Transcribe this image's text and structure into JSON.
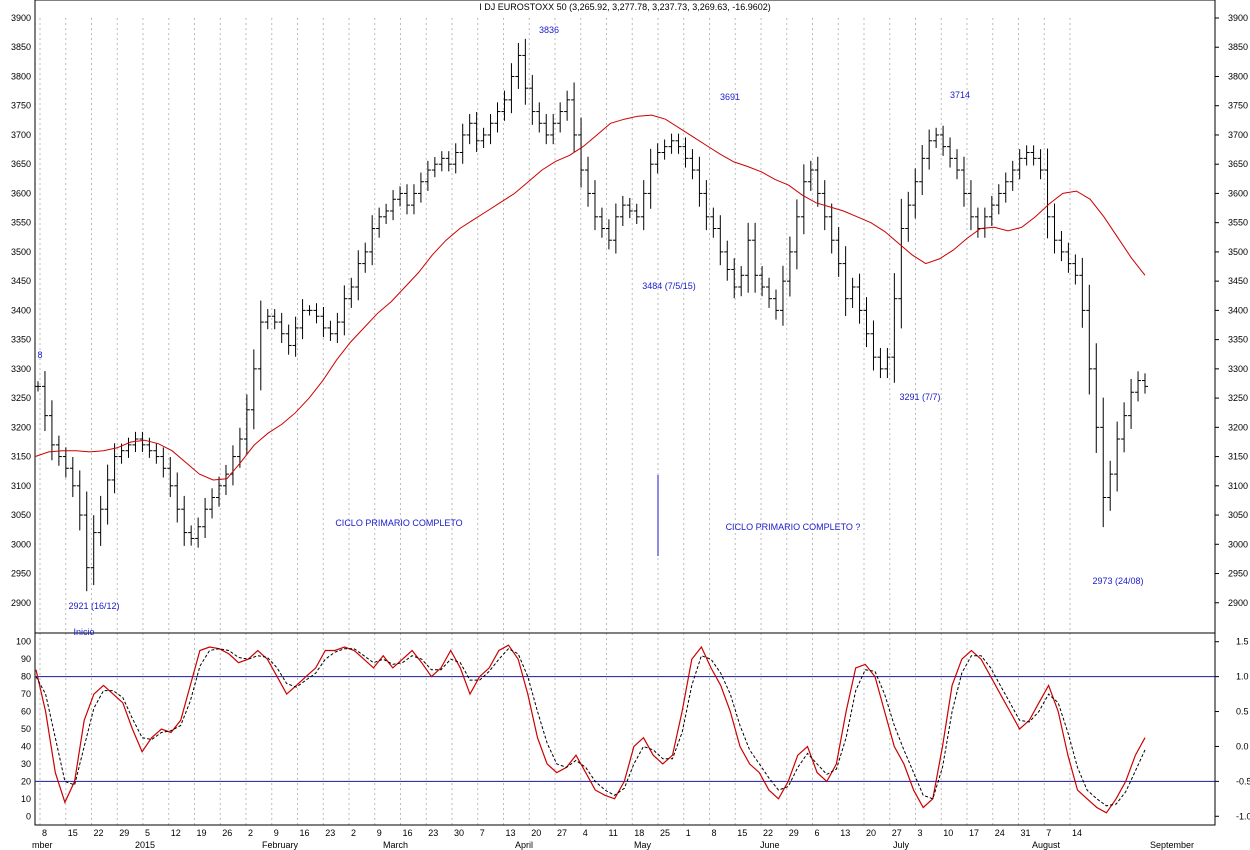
{
  "chart_data": {
    "type": "ohlc",
    "title": "I DJ EUROSTOXX 50 (3,265.92, 3,277.78, 3,237.73, 3,269.63, -16.9602)",
    "price_axis": {
      "ylim": [
        2850,
        3900
      ],
      "ticks": [
        "2900",
        "2950",
        "3000",
        "3050",
        "3100",
        "3150",
        "3200",
        "3250",
        "3300",
        "3350",
        "3400",
        "3450",
        "3500",
        "3550",
        "3600",
        "3650",
        "3700",
        "3750",
        "3800",
        "3850",
        "3900"
      ]
    },
    "oscillator_axis": {
      "ylim": [
        -5,
        105
      ],
      "left_ticks": [
        "0",
        "10",
        "20",
        "30",
        "40",
        "50",
        "60",
        "70",
        "80",
        "90",
        "100"
      ],
      "right_ticks": [
        "-1.0",
        "-0.5",
        "0.0",
        "0.5",
        "1.0",
        "1.5"
      ],
      "lines": [
        20,
        80
      ]
    },
    "x_day_labels": [
      "8",
      "15",
      "22",
      "29",
      "5",
      "12",
      "19",
      "26",
      "2",
      "9",
      "16",
      "23",
      "2",
      "9",
      "16",
      "23",
      "30",
      "7",
      "13",
      "20",
      "27",
      "4",
      "11",
      "18",
      "25",
      "1",
      "8",
      "15",
      "22",
      "29",
      "6",
      "13",
      "20",
      "27",
      "3",
      "10",
      "17",
      "24",
      "31",
      "7",
      "14"
    ],
    "x_month_labels": [
      "mber",
      "2015",
      "February",
      "March",
      "April",
      "May",
      "June",
      "July",
      "August",
      "September"
    ],
    "annotations": [
      {
        "text": "3836"
      },
      {
        "text": "3691"
      },
      {
        "text": "3714"
      },
      {
        "text": "3484 (7/5/15)"
      },
      {
        "text": "3291 (7/7)"
      },
      {
        "text": "2921 (16/12)"
      },
      {
        "text": "2973 (24/08)"
      },
      {
        "text": "CICLO PRIMARIO COMPLETO"
      },
      {
        "text": "CICLO PRIMARIO COMPLETO ?"
      },
      {
        "text": "Inicio"
      },
      {
        "text": "8"
      }
    ],
    "series": [
      {
        "kind": "price",
        "color": "#000000",
        "values": [
          3270,
          3220,
          3170,
          3150,
          3130,
          3100,
          3050,
          2960,
          3020,
          3060,
          3110,
          3150,
          3160,
          3170,
          3180,
          3170,
          3160,
          3150,
          3130,
          3100,
          3060,
          3020,
          3010,
          3030,
          3060,
          3080,
          3100,
          3120,
          3150,
          3180,
          3230,
          3300,
          3380,
          3390,
          3380,
          3360,
          3340,
          3370,
          3400,
          3400,
          3390,
          3370,
          3360,
          3380,
          3420,
          3440,
          3480,
          3500,
          3540,
          3560,
          3570,
          3590,
          3600,
          3580,
          3600,
          3620,
          3640,
          3650,
          3660,
          3650,
          3670,
          3700,
          3720,
          3690,
          3700,
          3720,
          3740,
          3760,
          3800,
          3836,
          3780,
          3740,
          3720,
          3700,
          3720,
          3740,
          3760,
          3700,
          3640,
          3600,
          3560,
          3540,
          3520,
          3560,
          3580,
          3570,
          3560,
          3600,
          3650,
          3670,
          3680,
          3690,
          3680,
          3660,
          3640,
          3600,
          3560,
          3540,
          3500,
          3470,
          3440,
          3460,
          3520,
          3460,
          3440,
          3420,
          3400,
          3450,
          3500,
          3560,
          3620,
          3640,
          3600,
          3560,
          3520,
          3480,
          3420,
          3440,
          3400,
          3360,
          3320,
          3300,
          3320,
          3420,
          3540,
          3580,
          3620,
          3660,
          3690,
          3700,
          3680,
          3660,
          3640,
          3600,
          3560,
          3540,
          3560,
          3580,
          3600,
          3620,
          3640,
          3660,
          3670,
          3660,
          3640,
          3560,
          3520,
          3500,
          3480,
          3460,
          3400,
          3300,
          3200,
          3080,
          3120,
          3180,
          3220,
          3260,
          3280,
          3270
        ]
      },
      {
        "kind": "moving_average",
        "color": "#cc0000",
        "values": [
          3150,
          3158,
          3160,
          3160,
          3158,
          3160,
          3165,
          3175,
          3178,
          3172,
          3160,
          3140,
          3120,
          3110,
          3112,
          3140,
          3170,
          3190,
          3205,
          3225,
          3250,
          3280,
          3315,
          3345,
          3370,
          3395,
          3415,
          3440,
          3465,
          3495,
          3520,
          3540,
          3555,
          3570,
          3585,
          3600,
          3620,
          3640,
          3655,
          3665,
          3680,
          3700,
          3720,
          3727,
          3732,
          3734,
          3727,
          3712,
          3697,
          3682,
          3667,
          3654,
          3646,
          3637,
          3624,
          3614,
          3597,
          3584,
          3577,
          3570,
          3560,
          3550,
          3535,
          3515,
          3495,
          3480,
          3488,
          3503,
          3523,
          3540,
          3542,
          3536,
          3542,
          3560,
          3582,
          3600,
          3604,
          3590,
          3560,
          3525,
          3490,
          3460
        ]
      },
      {
        "kind": "oscillator_k",
        "color": "#cc0000",
        "values": [
          84,
          60,
          25,
          8,
          20,
          55,
          70,
          75,
          70,
          65,
          50,
          37,
          45,
          50,
          48,
          55,
          75,
          95,
          97,
          96,
          93,
          88,
          90,
          95,
          90,
          80,
          70,
          75,
          80,
          85,
          95,
          95,
          97,
          95,
          90,
          85,
          92,
          85,
          90,
          95,
          88,
          80,
          85,
          95,
          85,
          70,
          80,
          85,
          95,
          98,
          90,
          70,
          45,
          30,
          25,
          28,
          35,
          25,
          15,
          12,
          10,
          20,
          40,
          45,
          35,
          30,
          35,
          60,
          90,
          97,
          85,
          75,
          60,
          40,
          30,
          25,
          15,
          10,
          20,
          35,
          40,
          25,
          20,
          30,
          60,
          85,
          87,
          80,
          60,
          40,
          30,
          15,
          5,
          10,
          40,
          75,
          90,
          95,
          90,
          80,
          70,
          60,
          50,
          55,
          65,
          75,
          60,
          35,
          15,
          10,
          5,
          2,
          10,
          20,
          35,
          45
        ]
      },
      {
        "kind": "oscillator_d",
        "color": "#000000",
        "values": [
          80,
          70,
          45,
          20,
          18,
          40,
          62,
          72,
          72,
          68,
          56,
          45,
          44,
          48,
          49,
          52,
          66,
          86,
          95,
          96,
          95,
          91,
          90,
          92,
          91,
          85,
          76,
          74,
          78,
          82,
          90,
          94,
          96,
          96,
          92,
          88,
          90,
          87,
          88,
          92,
          90,
          84,
          84,
          90,
          88,
          78,
          78,
          83,
          90,
          96,
          93,
          80,
          60,
          42,
          30,
          28,
          32,
          28,
          20,
          15,
          12,
          16,
          30,
          40,
          38,
          33,
          33,
          48,
          75,
          92,
          90,
          82,
          70,
          52,
          38,
          30,
          22,
          15,
          17,
          28,
          36,
          30,
          24,
          27,
          45,
          72,
          84,
          83,
          70,
          52,
          38,
          25,
          12,
          10,
          28,
          60,
          82,
          92,
          92,
          85,
          75,
          65,
          55,
          54,
          60,
          70,
          65,
          48,
          28,
          15,
          10,
          6,
          7,
          14,
          26,
          38
        ]
      }
    ]
  }
}
